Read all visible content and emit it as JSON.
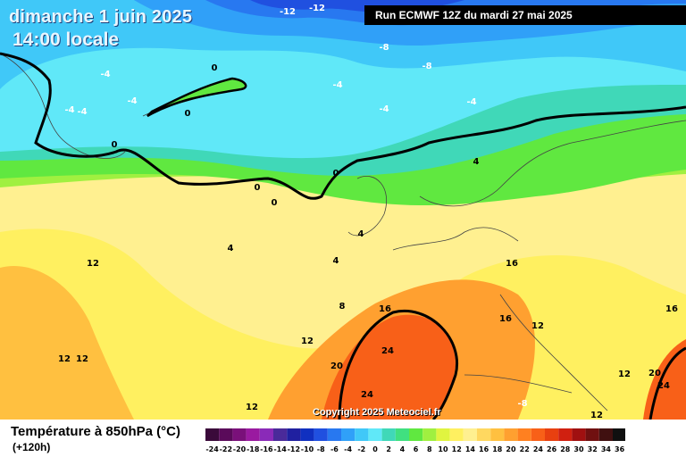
{
  "header": {
    "date": "dimanche 1 juin 2025",
    "time": "14:00 locale",
    "run": "Run ECMWF 12Z du mardi 27 mai 2025"
  },
  "copyright": "Copyright 2025 Meteociel.fr",
  "footer": {
    "parameter": "Température à 850hPa (°C)",
    "lead_time": "(+120h)"
  },
  "legend": {
    "ticks": [
      "-24",
      "-22",
      "-20",
      "-18",
      "-16",
      "-14",
      "-12",
      "-10",
      "-8",
      "-6",
      "-4",
      "-2",
      "0",
      "2",
      "4",
      "6",
      "8",
      "10",
      "12",
      "14",
      "16",
      "18",
      "20",
      "22",
      "24",
      "26",
      "28",
      "30",
      "32",
      "34",
      "36"
    ],
    "colors": [
      "#3a0a3a",
      "#5a0a5a",
      "#7a107a",
      "#9a1aa0",
      "#8a2ab8",
      "#4a2a9a",
      "#2020a0",
      "#1030c0",
      "#2050e0",
      "#2878f0",
      "#30a0f8",
      "#40c8f8",
      "#60e8f8",
      "#40d8b8",
      "#40e080",
      "#60e840",
      "#a0f040",
      "#e0f440",
      "#fff060",
      "#fff090",
      "#ffd860",
      "#ffc040",
      "#ffa030",
      "#ff8020",
      "#f86018",
      "#e84010",
      "#d02010",
      "#a01010",
      "#701010",
      "#401010",
      "#101010"
    ]
  },
  "map_labels": [
    {
      "text": "-12"
    },
    {
      "text": "-12"
    },
    {
      "text": "-8"
    },
    {
      "text": "-8"
    },
    {
      "text": "-8"
    },
    {
      "text": "-4"
    },
    {
      "text": "-4"
    },
    {
      "text": "-4"
    },
    {
      "text": "-4"
    },
    {
      "text": "-4"
    },
    {
      "text": "-4"
    },
    {
      "text": "-4"
    },
    {
      "text": "0"
    },
    {
      "text": "0"
    },
    {
      "text": "0"
    },
    {
      "text": "0"
    },
    {
      "text": "0"
    },
    {
      "text": "0"
    },
    {
      "text": "4"
    },
    {
      "text": "4"
    },
    {
      "text": "4"
    },
    {
      "text": "4"
    },
    {
      "text": "8"
    },
    {
      "text": "12"
    },
    {
      "text": "12"
    },
    {
      "text": "12"
    },
    {
      "text": "12"
    },
    {
      "text": "12"
    },
    {
      "text": "12"
    },
    {
      "text": "12"
    },
    {
      "text": "12"
    },
    {
      "text": "16"
    },
    {
      "text": "16"
    },
    {
      "text": "16"
    },
    {
      "text": "16"
    },
    {
      "text": "20"
    },
    {
      "text": "20"
    },
    {
      "text": "24"
    },
    {
      "text": "24"
    },
    {
      "text": "24"
    }
  ]
}
